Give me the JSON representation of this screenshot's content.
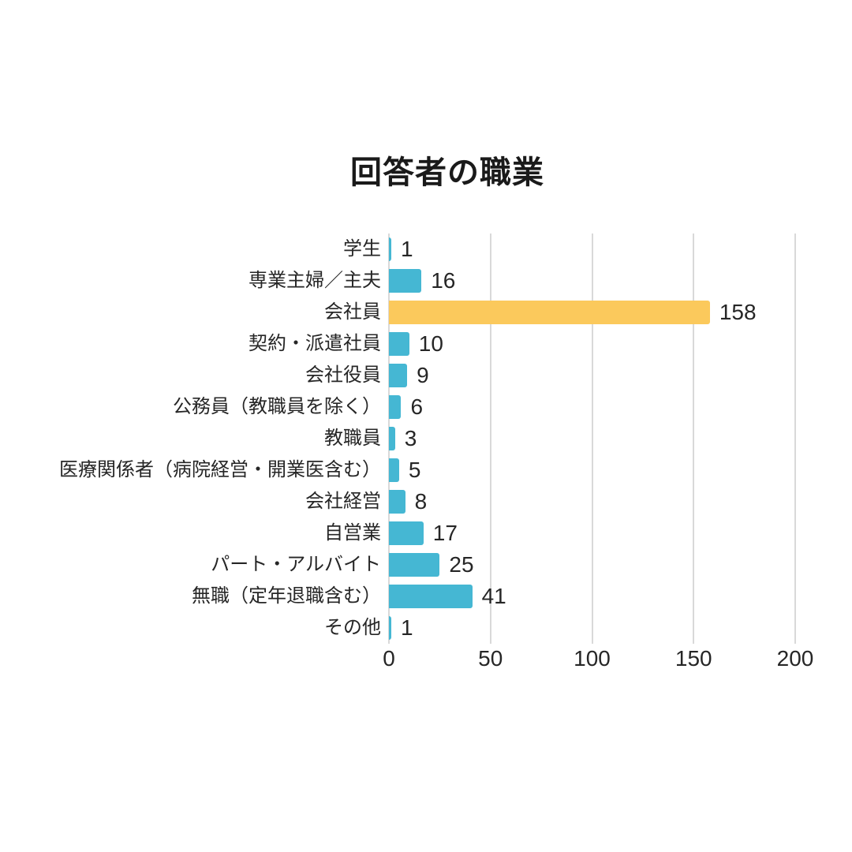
{
  "chart_data": {
    "type": "bar",
    "orientation": "horizontal",
    "title": "回答者の職業",
    "categories": [
      "学生",
      "専業主婦／主夫",
      "会社員",
      "契約・派遣社員",
      "会社役員",
      "公務員（教職員を除く）",
      "教職員",
      "医療関係者（病院経営・開業医含む）",
      "会社経営",
      "自営業",
      "パート・アルバイト",
      "無職（定年退職含む）",
      "その他"
    ],
    "values": [
      1,
      16,
      158,
      10,
      9,
      6,
      3,
      5,
      8,
      17,
      25,
      41,
      1
    ],
    "highlight_index": 2,
    "xlabel": "",
    "ylabel": "",
    "xlim": [
      0,
      200
    ],
    "xticks": [
      0,
      50,
      100,
      150,
      200
    ],
    "grid": true,
    "legend": "none",
    "colors": {
      "bar": "#45B7D3",
      "highlight": "#FBC95C",
      "gridline": "#D9D9D9",
      "text": "#262626",
      "title": "#1A1A1A",
      "background": "#FFFFFF"
    }
  }
}
